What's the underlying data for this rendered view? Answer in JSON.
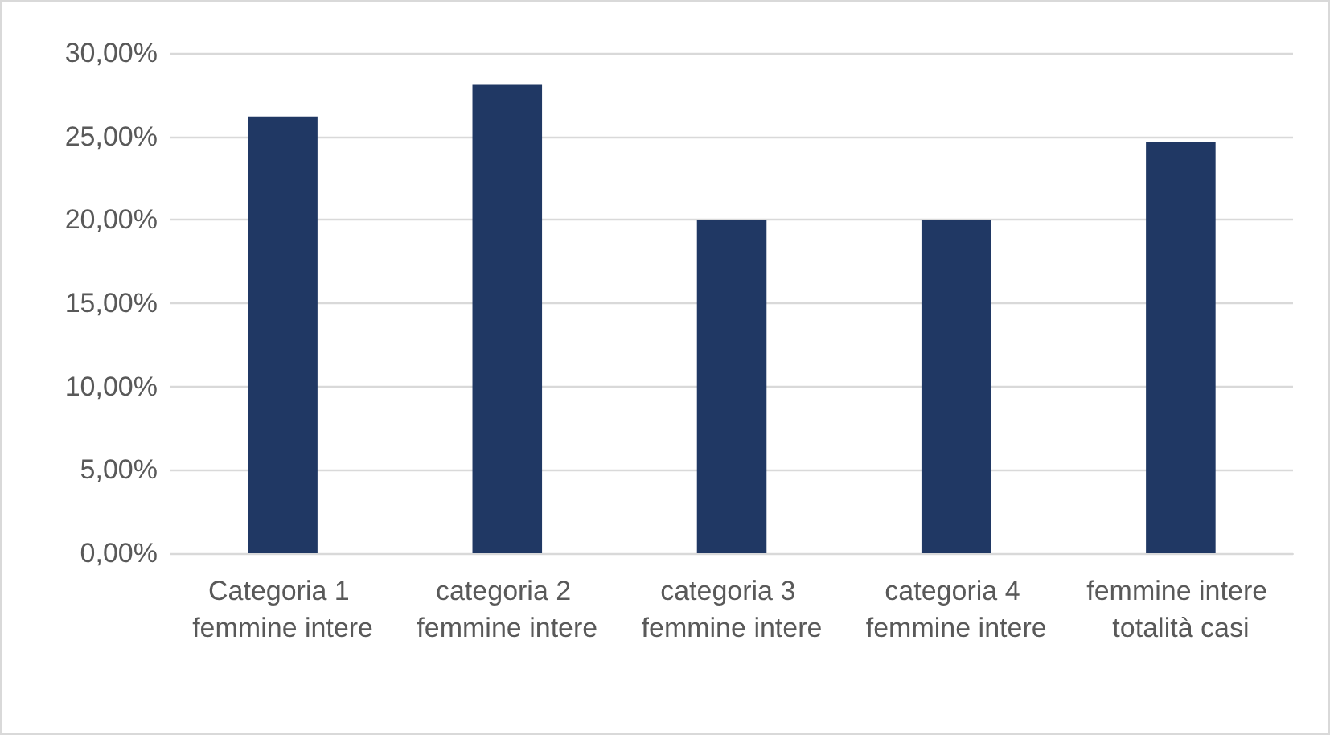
{
  "chart_data": {
    "type": "bar",
    "categories": [
      "Categoria 1 femmine intere",
      "categoria 2 femmine intere",
      "categoria 3 femmine intere",
      "categoria 4 femmine intere",
      "femmine intere totalità casi"
    ],
    "values": [
      26.2,
      28.1,
      20.0,
      20.0,
      24.7
    ],
    "color": "#203864",
    "ylim": [
      0,
      30
    ],
    "yticks": [
      {
        "value": 0,
        "label": "0,00%"
      },
      {
        "value": 5,
        "label": "5,00%"
      },
      {
        "value": 10,
        "label": "10,00%"
      },
      {
        "value": 15,
        "label": "15,00%"
      },
      {
        "value": 20,
        "label": "20,00%"
      },
      {
        "value": 25,
        "label": "25,00%"
      },
      {
        "value": 30,
        "label": "30,00%"
      }
    ],
    "grid": "y"
  }
}
